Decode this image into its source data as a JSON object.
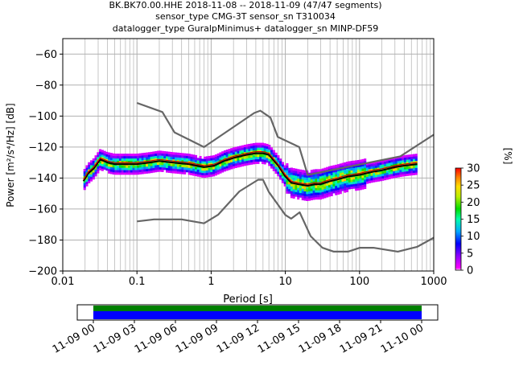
{
  "title_lines": [
    "BK.BK70.00.HHE   2018-11-08 -- 2018-11-09  (47/47 segments)",
    "sensor_type CMG-3T sensor_sn T310034",
    "datalogger_type GuralpMinimus+ datalogger_sn MINP-DF59"
  ],
  "chart_data": {
    "type": "heatmap",
    "title": "BK.BK70.00.HHE   2018-11-08 -- 2018-11-09  (47/47 segments)",
    "xlabel": "Period [s]",
    "ylabel": "Power [m²/s⁴/Hz] [dB]",
    "x_scale": "log",
    "xlim": [
      0.01,
      1000
    ],
    "ylim": [
      -200,
      -50
    ],
    "x_ticks": [
      0.01,
      0.1,
      1,
      10,
      100,
      1000
    ],
    "x_tick_labels": [
      "0.01",
      "0.1",
      "1",
      "10",
      "100",
      "1000"
    ],
    "y_ticks": [
      -200,
      -180,
      -160,
      -140,
      -120,
      -100,
      -80,
      -60
    ],
    "y_tick_labels": [
      "−200",
      "−180",
      "−160",
      "−140",
      "−120",
      "−100",
      "−80",
      "−60"
    ],
    "grid": true,
    "colorbar": {
      "label": "[%]",
      "range": [
        0,
        30
      ],
      "ticks": [
        0,
        5,
        10,
        15,
        20,
        25,
        30
      ],
      "colormap": "pqlx"
    },
    "series": [
      {
        "name": "",
        "role": "mode",
        "color": "#000000",
        "x": [
          0.019,
          0.022,
          0.026,
          0.032,
          0.04,
          0.05,
          0.07,
          0.1,
          0.15,
          0.2,
          0.3,
          0.5,
          0.8,
          1.1,
          1.5,
          2,
          3,
          4,
          5,
          6,
          8,
          10,
          12,
          15,
          20,
          25,
          30,
          40,
          50,
          70,
          100,
          150,
          200,
          300,
          400,
          600
        ],
        "y": [
          -142,
          -137,
          -134,
          -128,
          -130,
          -131,
          -131,
          -131,
          -130,
          -129,
          -130,
          -131,
          -133,
          -132,
          -129,
          -127,
          -125,
          -124,
          -124,
          -125,
          -132,
          -139,
          -143,
          -144,
          -145,
          -144,
          -144,
          -142,
          -141,
          -139,
          -138,
          -136,
          -135,
          -133,
          -132,
          -131
        ]
      },
      {
        "name": "",
        "role": "mean",
        "color": "#d00000",
        "x": [
          0.019,
          0.022,
          0.026,
          0.032,
          0.04,
          0.05,
          0.07,
          0.1,
          0.15,
          0.2,
          0.3,
          0.5,
          0.8,
          1.1,
          1.5,
          2,
          3,
          4,
          5,
          6,
          8,
          10,
          12,
          15,
          20,
          25,
          30,
          40,
          50,
          70,
          100,
          150,
          200,
          300,
          400,
          600
        ],
        "y": [
          -141,
          -136,
          -133,
          -127,
          -129,
          -130,
          -130,
          -130,
          -129,
          -128,
          -129,
          -130,
          -132,
          -131,
          -128,
          -126,
          -124,
          -123,
          -123,
          -124,
          -131,
          -138,
          -142,
          -143,
          -144,
          -143,
          -143,
          -141,
          -140,
          -138,
          -137,
          -135,
          -134,
          -132,
          -131,
          -130
        ]
      },
      {
        "name": "",
        "role": "NHNM",
        "color": "#666666",
        "x": [
          0.1,
          0.22,
          0.32,
          0.8,
          3.8,
          4.6,
          6.3,
          7.9,
          15.4,
          20,
          354.8,
          1000
        ],
        "y": [
          -91.5,
          -97.4,
          -110.5,
          -120,
          -98,
          -96.5,
          -101,
          -113.5,
          -120,
          -138,
          -126,
          -112
        ]
      },
      {
        "name": "",
        "role": "NLNM",
        "color": "#666666",
        "x": [
          0.1,
          0.17,
          0.4,
          0.8,
          1.24,
          2.4,
          4.3,
          5,
          6,
          10,
          12,
          15.6,
          21.9,
          31.6,
          45,
          70,
          101,
          154,
          328,
          600,
          1000
        ],
        "y": [
          -168,
          -166.7,
          -166.7,
          -169.2,
          -163.7,
          -148.6,
          -141.1,
          -141.1,
          -149,
          -163.8,
          -166.2,
          -162.1,
          -177.5,
          -185,
          -187.5,
          -187.5,
          -185,
          -185,
          -187.5,
          -184.4,
          -178.5
        ]
      }
    ]
  },
  "timeline": {
    "tick_labels": [
      "11-09 00",
      "11-09 03",
      "11-09 06",
      "11-09 09",
      "11-09 12",
      "11-09 15",
      "11-09 18",
      "11-09 21",
      "11-10 00"
    ],
    "colors": {
      "top": "#008000",
      "bottom": "#0000ff"
    }
  }
}
